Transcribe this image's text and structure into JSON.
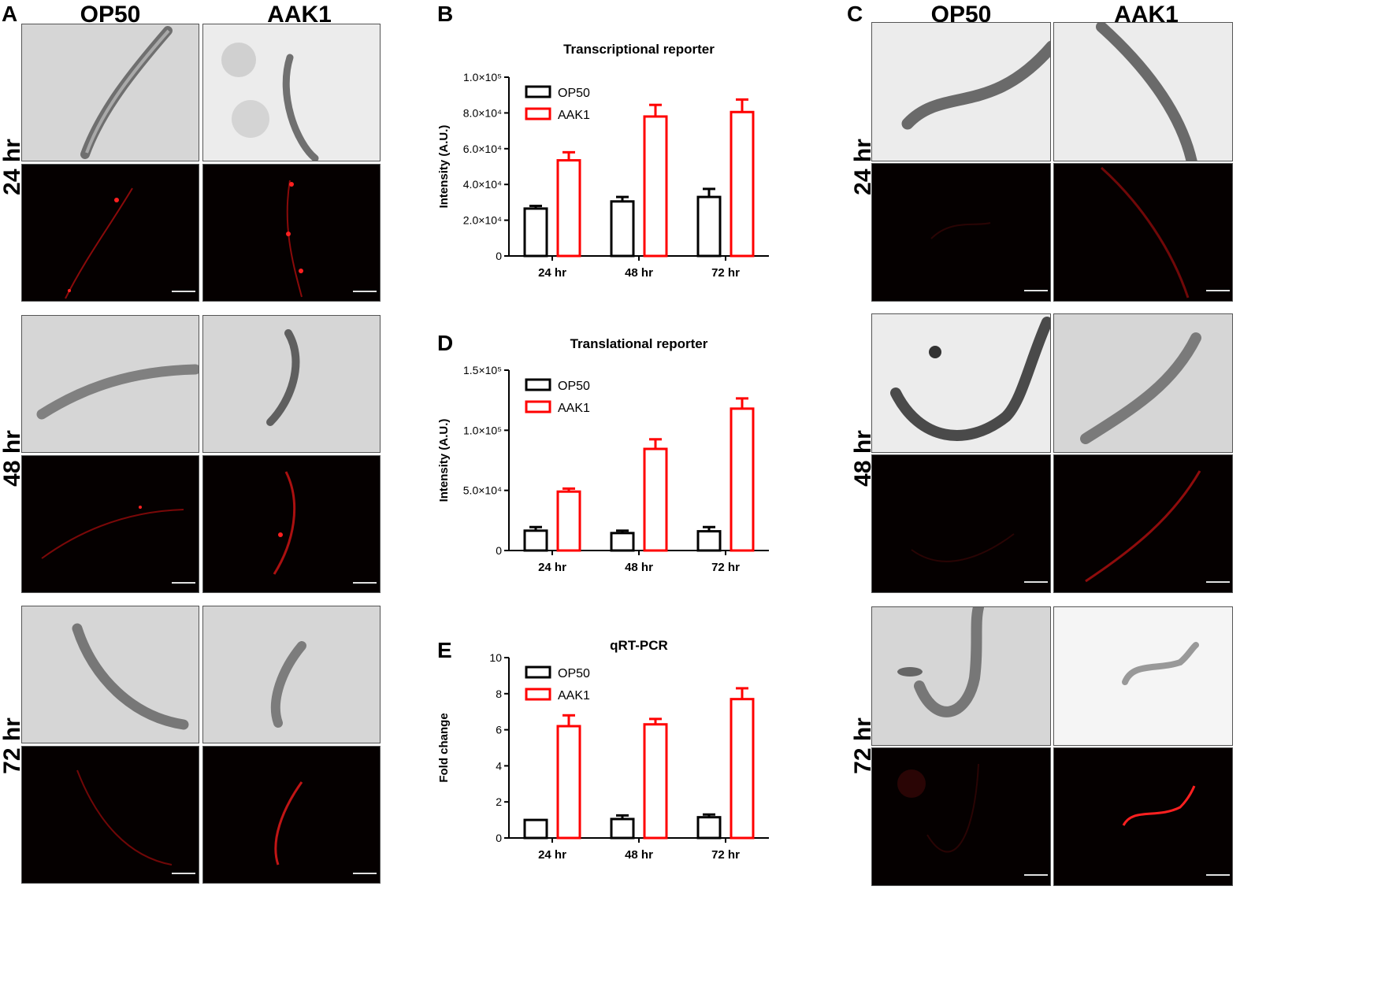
{
  "panels": {
    "A": {
      "letter": "A",
      "col_headers": [
        "OP50",
        "AAK1"
      ],
      "row_labels": [
        "24 hr",
        "48 hr",
        "72 hr"
      ]
    },
    "C": {
      "letter": "C",
      "col_headers": [
        "OP50",
        "AAK1"
      ],
      "row_labels": [
        "24 hr",
        "48 hr",
        "72 hr"
      ]
    }
  },
  "colors": {
    "op50": "#000000",
    "aak1": "#ff0000",
    "fluorescence": "#ff2020"
  },
  "chart_data": [
    {
      "panel": "B",
      "type": "bar",
      "title": "Transcriptional reporter",
      "ylabel": "Intensity (A.U.)",
      "xlabel": "",
      "categories": [
        "24 hr",
        "48 hr",
        "72 hr"
      ],
      "ylim": [
        0,
        100000
      ],
      "yticks": [
        0,
        20000,
        40000,
        60000,
        80000,
        100000
      ],
      "ytick_labels": [
        "0",
        "2.0×10⁴",
        "4.0×10⁴",
        "6.0×10⁴",
        "8.0×10⁴",
        "1.0×10⁵"
      ],
      "legend": "top-left",
      "series": [
        {
          "name": "OP50",
          "color": "#000000",
          "values": [
            26500,
            30500,
            33000
          ],
          "errors": [
            1500,
            2500,
            4500
          ]
        },
        {
          "name": "AAK1",
          "color": "#ff0000",
          "values": [
            53500,
            78000,
            80500
          ],
          "errors": [
            4500,
            6500,
            7000
          ]
        }
      ]
    },
    {
      "panel": "D",
      "type": "bar",
      "title": "Translational reporter",
      "ylabel": "Intensity (A.U.)",
      "xlabel": "",
      "categories": [
        "24 hr",
        "48 hr",
        "72 hr"
      ],
      "ylim": [
        0,
        150000
      ],
      "yticks": [
        0,
        50000,
        100000,
        150000
      ],
      "ytick_labels": [
        "0",
        "5.0×10⁴",
        "1.0×10⁵",
        "1.5×10⁵"
      ],
      "legend": "top-left",
      "series": [
        {
          "name": "OP50",
          "color": "#000000",
          "values": [
            16500,
            14500,
            16000
          ],
          "errors": [
            3000,
            2000,
            3500
          ]
        },
        {
          "name": "AAK1",
          "color": "#ff0000",
          "values": [
            49000,
            84500,
            118000
          ],
          "errors": [
            2500,
            8000,
            8500
          ]
        }
      ]
    },
    {
      "panel": "E",
      "type": "bar",
      "title": "qRT-PCR",
      "ylabel": "Fold change",
      "xlabel": "",
      "categories": [
        "24 hr",
        "48 hr",
        "72 hr"
      ],
      "ylim": [
        0,
        10
      ],
      "yticks": [
        0,
        2,
        4,
        6,
        8,
        10
      ],
      "ytick_labels": [
        "0",
        "2",
        "4",
        "6",
        "8",
        "10"
      ],
      "legend": "top-left",
      "series": [
        {
          "name": "OP50",
          "color": "#000000",
          "values": [
            1.0,
            1.05,
            1.15
          ],
          "errors": [
            0,
            0.2,
            0.15
          ]
        },
        {
          "name": "AAK1",
          "color": "#ff0000",
          "values": [
            6.2,
            6.3,
            7.7
          ],
          "errors": [
            0.6,
            0.3,
            0.6
          ]
        }
      ]
    }
  ]
}
